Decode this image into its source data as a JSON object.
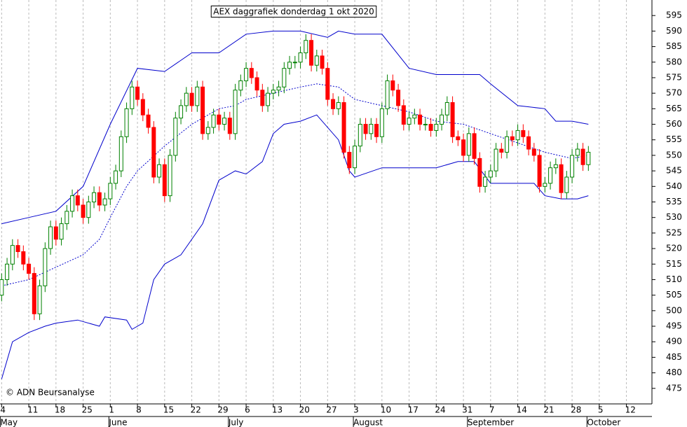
{
  "chart_data": {
    "type": "candlestick",
    "title": "AEX daggrafiek donderdag 1 okt 2020",
    "credit": "© ADN Beursanalyse",
    "xlim": [
      -0.3,
      119.7
    ],
    "ylim": [
      470,
      600
    ],
    "yticks": [
      475,
      480,
      485,
      490,
      495,
      500,
      505,
      510,
      515,
      520,
      525,
      530,
      535,
      540,
      545,
      550,
      555,
      560,
      565,
      570,
      575,
      580,
      585,
      590,
      595
    ],
    "xticks": [
      {
        "value": 0,
        "label": "4"
      },
      {
        "value": 5,
        "label": "11"
      },
      {
        "value": 10,
        "label": "18"
      },
      {
        "value": 15,
        "label": "25"
      },
      {
        "value": 20,
        "label": "1"
      },
      {
        "value": 25,
        "label": "8"
      },
      {
        "value": 30,
        "label": "15"
      },
      {
        "value": 35,
        "label": "22"
      },
      {
        "value": 40,
        "label": "29"
      },
      {
        "value": 45,
        "label": "6"
      },
      {
        "value": 50,
        "label": "13"
      },
      {
        "value": 55,
        "label": "20"
      },
      {
        "value": 60,
        "label": "27"
      },
      {
        "value": 65,
        "label": "3"
      },
      {
        "value": 70,
        "label": "10"
      },
      {
        "value": 75,
        "label": "17"
      },
      {
        "value": 80,
        "label": "24"
      },
      {
        "value": 85,
        "label": "31"
      },
      {
        "value": 90,
        "label": "7"
      },
      {
        "value": 95,
        "label": "14"
      },
      {
        "value": 100,
        "label": "21"
      },
      {
        "value": 105,
        "label": "28"
      },
      {
        "value": 110,
        "label": "5"
      },
      {
        "value": 115,
        "label": "12"
      }
    ],
    "months": [
      {
        "value": 0,
        "label": "May"
      },
      {
        "value": 20,
        "label": "June"
      },
      {
        "value": 42,
        "label": "July"
      },
      {
        "value": 65,
        "label": "August"
      },
      {
        "value": 86,
        "label": "September"
      },
      {
        "value": 108,
        "label": "October"
      }
    ],
    "grid": true,
    "up_color": "#008000",
    "down_color": "#ff0000",
    "open": [
      505,
      510,
      515,
      521,
      519,
      515,
      512,
      499,
      508,
      520,
      527,
      523,
      528,
      532,
      537,
      534,
      530,
      535,
      538,
      534,
      536,
      541,
      545,
      556,
      565,
      572,
      568,
      563,
      559,
      543,
      547,
      537,
      550,
      562,
      566,
      570,
      566,
      572,
      557,
      559,
      563,
      560,
      562,
      557,
      571,
      574,
      578,
      575,
      571,
      566,
      570,
      571,
      572,
      578,
      580,
      580,
      583,
      587,
      579,
      582,
      578,
      568,
      565,
      567,
      551,
      546,
      553,
      560,
      557,
      560,
      556,
      565,
      574,
      571,
      566,
      560,
      562,
      563,
      560,
      560,
      558,
      560,
      563,
      567,
      556,
      555,
      550,
      557,
      549,
      540,
      543,
      545,
      552,
      551,
      556,
      555,
      558,
      556,
      552,
      550,
      540,
      541,
      546,
      547,
      538,
      543,
      550,
      552,
      547
    ],
    "high": [
      512,
      517,
      523,
      523,
      521,
      517,
      514,
      510,
      522,
      529,
      529,
      530,
      534,
      539,
      539,
      536,
      537,
      540,
      540,
      538,
      543,
      547,
      558,
      567,
      574,
      574,
      570,
      565,
      561,
      549,
      549,
      552,
      564,
      568,
      572,
      572,
      574,
      574,
      561,
      565,
      565,
      564,
      564,
      573,
      576,
      580,
      580,
      577,
      573,
      572,
      573,
      574,
      580,
      582,
      582,
      585,
      589,
      589,
      584,
      584,
      580,
      570,
      569,
      569,
      553,
      555,
      562,
      562,
      562,
      562,
      567,
      576,
      576,
      573,
      568,
      564,
      565,
      565,
      562,
      562,
      562,
      565,
      569,
      569,
      558,
      557,
      559,
      559,
      551,
      545,
      547,
      554,
      554,
      558,
      558,
      560,
      560,
      558,
      554,
      552,
      543,
      548,
      549,
      549,
      545,
      552,
      554,
      554,
      553
    ],
    "low": [
      503,
      508,
      513,
      517,
      513,
      510,
      497,
      497,
      506,
      518,
      521,
      521,
      526,
      530,
      532,
      528,
      528,
      533,
      532,
      532,
      534,
      539,
      543,
      554,
      563,
      566,
      561,
      557,
      541,
      541,
      535,
      535,
      548,
      560,
      564,
      564,
      564,
      555,
      555,
      557,
      558,
      558,
      555,
      555,
      569,
      572,
      573,
      569,
      564,
      564,
      568,
      569,
      570,
      576,
      578,
      578,
      581,
      577,
      577,
      576,
      566,
      563,
      563,
      549,
      544,
      544,
      551,
      555,
      555,
      554,
      554,
      563,
      569,
      564,
      558,
      558,
      560,
      558,
      558,
      556,
      556,
      558,
      561,
      554,
      553,
      548,
      548,
      547,
      538,
      538,
      541,
      543,
      549,
      549,
      553,
      553,
      554,
      550,
      548,
      538,
      538,
      539,
      544,
      536,
      536,
      541,
      548,
      545,
      545
    ],
    "close": [
      510,
      515,
      521,
      519,
      515,
      512,
      499,
      508,
      520,
      527,
      523,
      528,
      532,
      537,
      534,
      530,
      535,
      538,
      534,
      536,
      541,
      545,
      556,
      565,
      572,
      568,
      563,
      559,
      543,
      547,
      537,
      550,
      562,
      566,
      570,
      566,
      572,
      557,
      559,
      563,
      560,
      562,
      557,
      571,
      574,
      578,
      575,
      571,
      566,
      570,
      571,
      572,
      578,
      580,
      580,
      583,
      587,
      579,
      582,
      578,
      568,
      565,
      567,
      551,
      546,
      553,
      560,
      557,
      560,
      556,
      565,
      574,
      571,
      566,
      560,
      562,
      563,
      560,
      560,
      558,
      560,
      563,
      567,
      556,
      555,
      550,
      557,
      549,
      540,
      543,
      545,
      552,
      551,
      556,
      555,
      558,
      556,
      552,
      550,
      540,
      541,
      546,
      547,
      538,
      543,
      550,
      552,
      547,
      551
    ],
    "lines": [
      {
        "color": "#0000cc",
        "style": "solid",
        "x": [
          0,
          5,
          10,
          15,
          20,
          25,
          30,
          35,
          40,
          45,
          50,
          55,
          60,
          62,
          65,
          70,
          75,
          80,
          85,
          88,
          90,
          95,
          100,
          102,
          105,
          108
        ],
        "values": [
          528,
          530,
          532,
          540,
          560,
          578,
          577,
          583,
          583,
          589,
          590,
          590,
          588,
          590,
          589,
          589,
          578,
          576,
          576,
          576,
          573,
          566,
          565,
          561,
          561,
          560
        ]
      },
      {
        "color": "#0000cc",
        "style": "dashed",
        "x": [
          0,
          5,
          10,
          15,
          18,
          20,
          23,
          25,
          30,
          35,
          40,
          43,
          45,
          50,
          55,
          58,
          62,
          65,
          70,
          75,
          80,
          85,
          90,
          95,
          100,
          105,
          108
        ],
        "values": [
          508,
          510,
          514,
          518,
          523,
          530,
          540,
          545,
          553,
          560,
          565,
          566,
          568,
          570,
          572,
          573,
          572,
          568,
          566,
          564,
          561,
          560,
          557,
          554,
          551,
          549,
          550
        ]
      },
      {
        "color": "#0000cc",
        "style": "solid",
        "x": [
          0,
          2,
          5,
          8,
          10,
          14,
          18,
          19,
          23,
          24,
          26,
          28,
          30,
          33,
          37,
          40,
          43,
          45,
          48,
          50,
          52,
          55,
          58,
          62,
          64,
          65,
          70,
          75,
          80,
          84,
          87,
          90,
          95,
          98,
          100,
          103,
          106,
          108
        ],
        "values": [
          478,
          490,
          493,
          495,
          496,
          497,
          495,
          498,
          497,
          494,
          496,
          510,
          515,
          518,
          528,
          542,
          545,
          544,
          548,
          557,
          560,
          561,
          563,
          555,
          545,
          543,
          546,
          546,
          546,
          548,
          548,
          541,
          541,
          541,
          537,
          536,
          536,
          537
        ]
      }
    ]
  }
}
